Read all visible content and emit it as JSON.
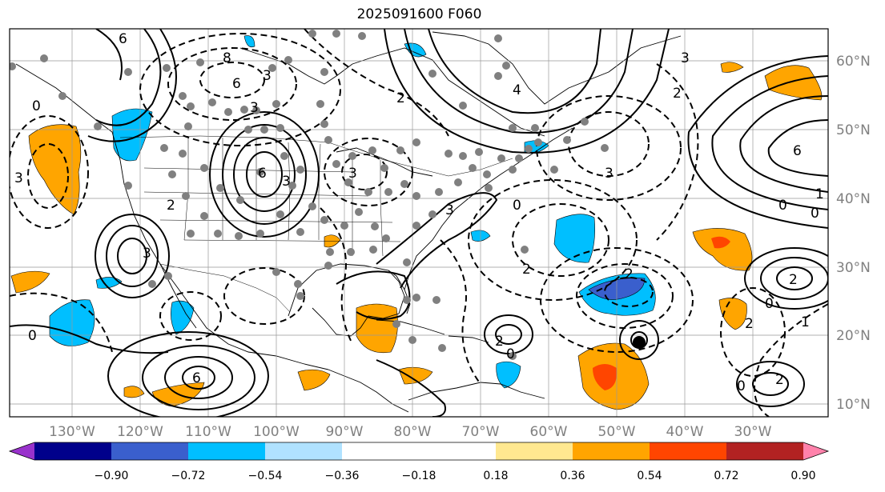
{
  "title": "2025091600 F060",
  "lon_labels": [
    "130°W",
    "120°W",
    "110°W",
    "100°W",
    "90°W",
    "80°W",
    "70°W",
    "60°W",
    "50°W",
    "40°W",
    "30°W"
  ],
  "lat_labels": [
    "60°N",
    "50°N",
    "40°N",
    "30°N",
    "20°N",
    "10°N"
  ],
  "colorbar": {
    "colors": [
      "#9932cc",
      "#00008b",
      "#3a5fcd",
      "#00bfff",
      "#b0e2ff",
      "#ffffff",
      "#ffe890",
      "#ffa500",
      "#ff4500",
      "#b22222",
      "#ff82ab"
    ],
    "tick_labels": [
      "−0.90",
      "−0.72",
      "−0.54",
      "−0.36",
      "−0.18",
      "0.18",
      "0.36",
      "0.54",
      "0.72",
      "0.90"
    ]
  },
  "contour_labels": [
    "6",
    "6",
    "8",
    "3",
    "0",
    "3",
    "6",
    "3",
    "6",
    "0",
    "2",
    "2",
    "3",
    "3",
    "3",
    "3",
    "3",
    "0",
    "6",
    "4",
    "2",
    "3",
    "0",
    "0",
    "2",
    "2",
    "2",
    "2",
    "0",
    "1",
    "0",
    "2",
    "0",
    "2",
    "1"
  ],
  "colors": {
    "axis_label": "#808080",
    "frame": "#000000"
  }
}
